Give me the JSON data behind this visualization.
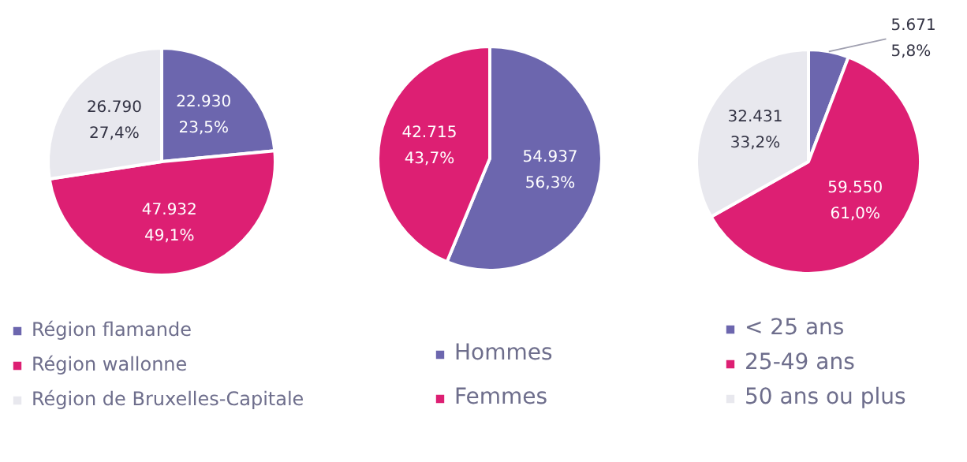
{
  "chart_data": [
    {
      "type": "pie",
      "categories": [
        "Région flamande",
        "Région wallonne",
        "Région de Bruxelles-Capitale"
      ],
      "values": [
        22930,
        47932,
        26790
      ],
      "colors": [
        "#6c66ae",
        "#dd1f73",
        "#e8e8ee"
      ],
      "value_labels": [
        "22.930\n23,5%",
        "47.932\n49,1%",
        "26.790\n27,4%"
      ],
      "legend": "bottom"
    },
    {
      "type": "pie",
      "categories": [
        "Hommes",
        "Femmes"
      ],
      "values": [
        54937,
        42715
      ],
      "colors": [
        "#6c66ae",
        "#dd1f73"
      ],
      "value_labels": [
        "54.937\n56,3%",
        "42.715\n43,7%"
      ],
      "legend": "bottom"
    },
    {
      "type": "pie",
      "categories": [
        "< 25 ans",
        "25-49 ans",
        "50 ans ou plus"
      ],
      "values": [
        5671,
        59550,
        32431
      ],
      "colors": [
        "#6c66ae",
        "#dd1f73",
        "#e8e8ee"
      ],
      "value_labels": [
        "5.671\n5,8%",
        "59.550\n61,0%",
        "32.431\n33,2%"
      ],
      "legend": "bottom"
    }
  ]
}
